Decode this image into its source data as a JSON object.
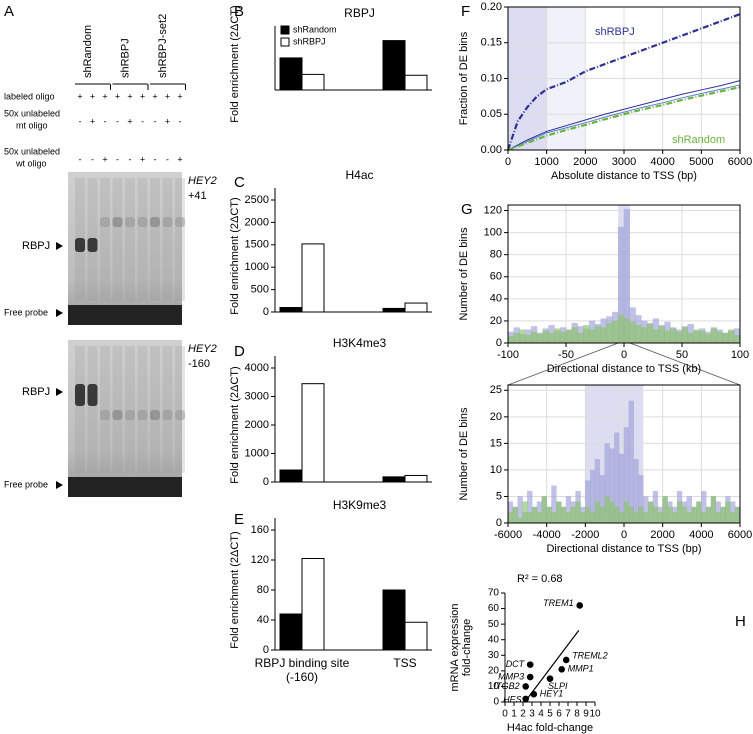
{
  "gel": {
    "panel": "A",
    "groups": [
      "shRandom",
      "shRBPJ",
      "shRBPJ-set2"
    ],
    "rows": [
      {
        "label": [
          "labeled oligo"
        ],
        "signs": [
          "+",
          "+",
          "+",
          "+",
          "+",
          "+",
          "+",
          "+",
          "+"
        ]
      },
      {
        "label": [
          "50x unlabeled",
          "mt oligo"
        ],
        "signs": [
          "-",
          "+",
          "-",
          "-",
          "+",
          "-",
          "-",
          "+",
          "-"
        ]
      },
      {
        "label": [
          "50x unlabeled",
          "wt oligo"
        ],
        "signs": [
          "-",
          "-",
          "+",
          "-",
          "-",
          "+",
          "-",
          "-",
          "+"
        ]
      }
    ],
    "blots": [
      {
        "gene": "HEY2",
        "position": "+41",
        "band": "RBPJ",
        "probe": "Free probe"
      },
      {
        "gene": "HEY2",
        "position": "-160",
        "band": "RBPJ",
        "probe": "Free probe"
      }
    ]
  },
  "chart_data": [
    {
      "type": "bar",
      "panel": "B",
      "title": "RBPJ",
      "ylabel": "Fold enrichment (2ΔCT)",
      "categories": [
        null,
        null
      ],
      "series": [
        {
          "name": "shRandom",
          "color": "#000000",
          "values": [
            3.7,
            5.7
          ]
        },
        {
          "name": "shRBPJ",
          "color": "#ffffff",
          "values": [
            1.8,
            1.7
          ]
        }
      ],
      "ylim": [
        0,
        6
      ],
      "legend": "upper left"
    },
    {
      "type": "bar",
      "panel": "C",
      "title": "H4ac",
      "ylabel": "Fold enrichment (2ΔCT)",
      "categories": [
        null,
        null
      ],
      "series": [
        {
          "color": "#000000",
          "values": [
            100,
            80
          ]
        },
        {
          "color": "#ffffff",
          "values": [
            1520,
            200
          ]
        }
      ],
      "ylim": [
        0,
        2500
      ],
      "yticks": [
        0,
        500,
        1000,
        1500,
        2000,
        2500
      ]
    },
    {
      "type": "bar",
      "panel": "D",
      "title": "H3K4me3",
      "ylabel": "Fold enrichment (2ΔCT)",
      "categories": [
        null,
        null
      ],
      "series": [
        {
          "color": "#000000",
          "values": [
            420,
            180
          ]
        },
        {
          "color": "#ffffff",
          "values": [
            3450,
            230
          ]
        }
      ],
      "ylim": [
        0,
        4000
      ],
      "yticks": [
        0,
        1000,
        2000,
        3000,
        4000
      ]
    },
    {
      "type": "bar",
      "panel": "E",
      "title": "H3K9me3",
      "ylabel": "Fold enrichment (2ΔCT)",
      "categories": [
        "RBPJ binding site (-160)",
        "TSS"
      ],
      "series": [
        {
          "color": "#000000",
          "values": [
            48,
            80
          ]
        },
        {
          "color": "#ffffff",
          "values": [
            122,
            37
          ]
        }
      ],
      "ylim": [
        0,
        160
      ],
      "yticks": [
        0,
        40,
        80,
        120,
        160
      ]
    },
    {
      "type": "line",
      "panel": "F",
      "xlabel": "Absolute distance to TSS (bp)",
      "ylabel": "Fraction of DE bins",
      "x": [
        0,
        250,
        500,
        750,
        1000,
        1500,
        2000,
        2500,
        3000,
        3500,
        4000,
        4500,
        5000,
        5500,
        6000
      ],
      "series": [
        {
          "name": "shRBPJ",
          "color": "#2e3192",
          "dashed": true,
          "values": [
            0,
            0.04,
            0.06,
            0.075,
            0.085,
            0.095,
            0.11,
            0.12,
            0.13,
            0.14,
            0.15,
            0.16,
            0.17,
            0.18,
            0.19
          ]
        },
        {
          "color": "#2e3192",
          "values": [
            0,
            0.007,
            0.014,
            0.02,
            0.026,
            0.034,
            0.042,
            0.05,
            0.057,
            0.064,
            0.071,
            0.078,
            0.084,
            0.09,
            0.097
          ]
        },
        {
          "color": "#5a7fd6",
          "values": [
            0,
            0.006,
            0.012,
            0.018,
            0.024,
            0.031,
            0.038,
            0.046,
            0.053,
            0.06,
            0.066,
            0.073,
            0.079,
            0.085,
            0.091
          ]
        },
        {
          "name": "shRandom",
          "color": "#6cb33f",
          "dashed": true,
          "values": [
            0,
            0.005,
            0.01,
            0.015,
            0.02,
            0.028,
            0.035,
            0.043,
            0.05,
            0.057,
            0.063,
            0.07,
            0.076,
            0.082,
            0.088
          ]
        }
      ],
      "shaded": [
        [
          0,
          1000
        ],
        [
          1000,
          2000
        ]
      ],
      "xlim": [
        0,
        6000
      ],
      "xticks": [
        0,
        1000,
        2000,
        3000,
        4000,
        5000,
        6000
      ],
      "ylim": [
        0,
        0.2
      ],
      "yticks": [
        {
          "value": 0,
          "label": "0.00"
        },
        0.05,
        {
          "value": 0.1,
          "label": "0.10"
        },
        0.15,
        {
          "value": 0.2,
          "label": "0.20"
        }
      ],
      "grid": true
    },
    {
      "type": "histogram",
      "panel": "G",
      "xlabel": "Directional distance to TSS (kb)",
      "ylabel": "Number of DE bins",
      "bins": [
        -100,
        -95,
        -90,
        -85,
        -80,
        -75,
        -70,
        -65,
        -60,
        -55,
        -50,
        -45,
        -40,
        -35,
        -30,
        -25,
        -20,
        -15,
        -10,
        -5,
        0,
        5,
        10,
        15,
        20,
        25,
        30,
        35,
        40,
        45,
        50,
        55,
        60,
        65,
        70,
        75,
        80,
        85,
        90,
        95,
        100
      ],
      "series": [
        {
          "color": "#9ea2d8",
          "values": [
            10,
            14,
            8,
            12,
            15,
            9,
            13,
            16,
            11,
            14,
            12,
            18,
            15,
            13,
            20,
            17,
            22,
            24,
            28,
            105,
            121,
            32,
            25,
            20,
            18,
            22,
            16,
            19,
            14,
            12,
            15,
            17,
            11,
            13,
            10,
            14,
            12,
            9,
            11,
            13
          ]
        },
        {
          "color": "#8cc46a",
          "values": [
            6,
            9,
            12,
            7,
            10,
            8,
            11,
            9,
            13,
            10,
            12,
            14,
            9,
            16,
            12,
            15,
            14,
            18,
            20,
            25,
            22,
            19,
            16,
            14,
            17,
            12,
            15,
            11,
            13,
            10,
            14,
            9,
            12,
            11,
            8,
            13,
            10,
            9,
            12,
            7
          ]
        }
      ],
      "shaded": [
        [
          -5,
          5
        ]
      ],
      "xlim": [
        -100,
        100
      ],
      "xticks": [
        -100,
        -50,
        0,
        50,
        100
      ],
      "ylim": [
        0,
        125
      ],
      "yticks": [
        0,
        20,
        40,
        60,
        80,
        100,
        120
      ],
      "grid": true
    },
    {
      "type": "histogram",
      "xlabel": "Directional distance to TSS (bp)",
      "ylabel": "Number of DE bins",
      "bins": [
        -6000,
        -5750,
        -5500,
        -5250,
        -5000,
        -4750,
        -4500,
        -4250,
        -4000,
        -3750,
        -3500,
        -3250,
        -3000,
        -2750,
        -2500,
        -2250,
        -2000,
        -1750,
        -1500,
        -1250,
        -1000,
        -750,
        -500,
        -250,
        0,
        250,
        500,
        750,
        1000,
        1250,
        1500,
        1750,
        2000,
        2250,
        2500,
        2750,
        3000,
        3250,
        3500,
        3750,
        4000,
        4250,
        4500,
        4750,
        5000,
        5250,
        5500,
        5750,
        6000
      ],
      "series": [
        {
          "color": "#9ea2d8",
          "values": [
            4,
            3,
            5,
            2,
            6,
            3,
            4,
            5,
            3,
            7,
            4,
            3,
            5,
            4,
            6,
            3,
            8,
            10,
            12,
            9,
            15,
            14,
            17,
            13,
            18,
            23,
            12,
            9,
            5,
            4,
            6,
            3,
            5,
            4,
            3,
            6,
            4,
            5,
            3,
            4,
            6,
            3,
            5,
            4,
            3,
            5,
            4,
            3
          ]
        },
        {
          "color": "#8cc46a",
          "values": [
            2,
            3,
            1,
            4,
            2,
            3,
            2,
            5,
            3,
            2,
            4,
            3,
            2,
            3,
            4,
            2,
            3,
            2,
            4,
            3,
            5,
            4,
            3,
            2,
            4,
            3,
            2,
            3,
            2,
            4,
            3,
            2,
            5,
            3,
            2,
            4,
            3,
            2,
            3,
            4,
            2,
            3,
            5,
            2,
            3,
            4,
            2,
            3
          ]
        }
      ],
      "shaded": [
        [
          -2000,
          1000
        ]
      ],
      "xlim": [
        -6000,
        6000
      ],
      "xticks": [
        -6000,
        -4000,
        -2000,
        0,
        2000,
        4000,
        6000
      ],
      "ylim": [
        0,
        26
      ],
      "yticks": [
        0,
        5,
        10,
        15,
        20,
        25
      ],
      "grid": true
    },
    {
      "type": "scatter",
      "panel": "H",
      "xlabel": "H4ac fold-change",
      "ylabel": [
        "mRNA expression",
        "fold-change"
      ],
      "annotation": "R² = 0.68",
      "labels": [
        "TREM1",
        "DCT",
        "MMP3",
        "ITGB2",
        "HES",
        "HEY1",
        "SLPI",
        "MMP1",
        "TREML2"
      ],
      "x": [
        8.3,
        2.8,
        2.8,
        2.3,
        2.3,
        3.2,
        5.0,
        6.3,
        6.8
      ],
      "values": [
        62,
        24,
        16,
        10,
        2,
        5,
        15,
        21,
        27
      ],
      "trendline": {
        "x": [
          2.2,
          8.2
        ],
        "y": [
          0,
          46
        ]
      },
      "xlim": [
        0,
        10
      ],
      "xticks": [
        0,
        1,
        2,
        3,
        4,
        5,
        6,
        7,
        8,
        9,
        10
      ],
      "ylim": [
        0,
        70
      ],
      "yticks": [
        0,
        10,
        20,
        30,
        40,
        50,
        60,
        70
      ]
    }
  ]
}
